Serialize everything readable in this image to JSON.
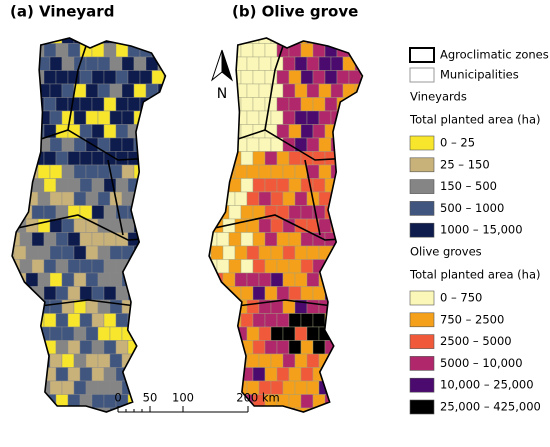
{
  "panels": [
    {
      "title": "(a) Vineyard"
    },
    {
      "title": "(b) Olive grove"
    }
  ],
  "north_arrow": "N",
  "legend": {
    "boundaries": [
      {
        "label": "Agroclimatic zones"
      },
      {
        "label": "Municipalities"
      }
    ],
    "groups": [
      {
        "title": "Vineyards",
        "subtitle": "Total planted area (ha)",
        "classes": [
          {
            "label": "0 – 25",
            "color": "#f7e62c"
          },
          {
            "label": "25 – 150",
            "color": "#c8b27a"
          },
          {
            "label": "150 – 500",
            "color": "#858585"
          },
          {
            "label": "500 – 1000",
            "color": "#40567f"
          },
          {
            "label": "1000 – 15,000",
            "color": "#0d1c4d"
          }
        ]
      },
      {
        "title": "Olive groves",
        "subtitle": "Total planted area (ha)",
        "classes": [
          {
            "label": "0 – 750",
            "color": "#fbf7b8"
          },
          {
            "label": "750 – 2500",
            "color": "#f5a01a"
          },
          {
            "label": "2500 – 5000",
            "color": "#f05a3a"
          },
          {
            "label": "5000 – 10,000",
            "color": "#b0276c"
          },
          {
            "label": "10,000 – 25,000",
            "color": "#4b0a6e"
          },
          {
            "label": "25,000 – 425,000",
            "color": "#000000"
          }
        ]
      }
    ]
  },
  "scale_bar": {
    "labels": [
      "0",
      "50",
      "100",
      "200 km"
    ]
  }
}
